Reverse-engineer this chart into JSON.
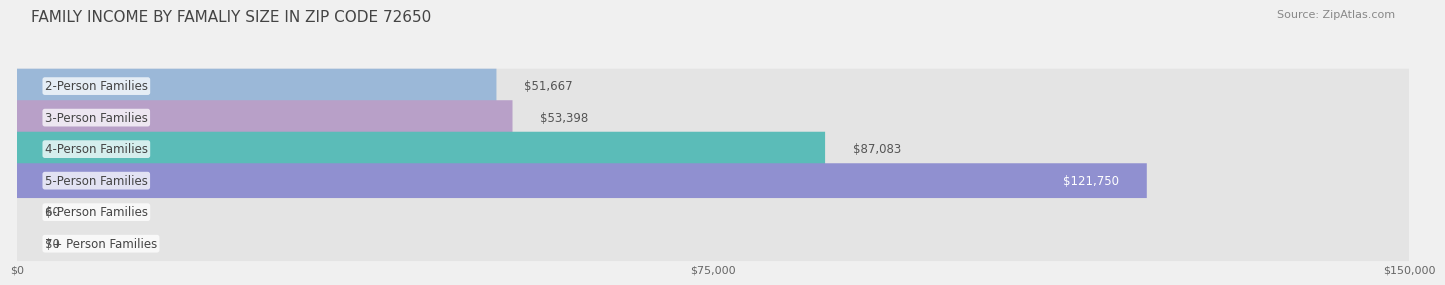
{
  "title": "FAMILY INCOME BY FAMALIY SIZE IN ZIP CODE 72650",
  "source": "Source: ZipAtlas.com",
  "categories": [
    "2-Person Families",
    "3-Person Families",
    "4-Person Families",
    "5-Person Families",
    "6-Person Families",
    "7+ Person Families"
  ],
  "values": [
    51667,
    53398,
    87083,
    121750,
    0,
    0
  ],
  "bar_colors": [
    "#9bb8d8",
    "#b8a0c8",
    "#5bbcb8",
    "#9090d0",
    "#f4a0b0",
    "#f0c898"
  ],
  "label_colors": [
    "#333333",
    "#333333",
    "#333333",
    "#ffffff",
    "#333333",
    "#333333"
  ],
  "max_value": 150000,
  "xtick_values": [
    0,
    75000,
    150000
  ],
  "xtick_labels": [
    "$0",
    "$75,000",
    "$150,000"
  ],
  "value_labels": [
    "$51,667",
    "$53,398",
    "$87,083",
    "$121,750",
    "$0",
    "$0"
  ],
  "background_color": "#f0f0f0",
  "bar_background": "#e4e4e4",
  "bar_height": 0.6,
  "title_fontsize": 11,
  "source_fontsize": 8,
  "label_fontsize": 8.5,
  "value_fontsize": 8.5
}
